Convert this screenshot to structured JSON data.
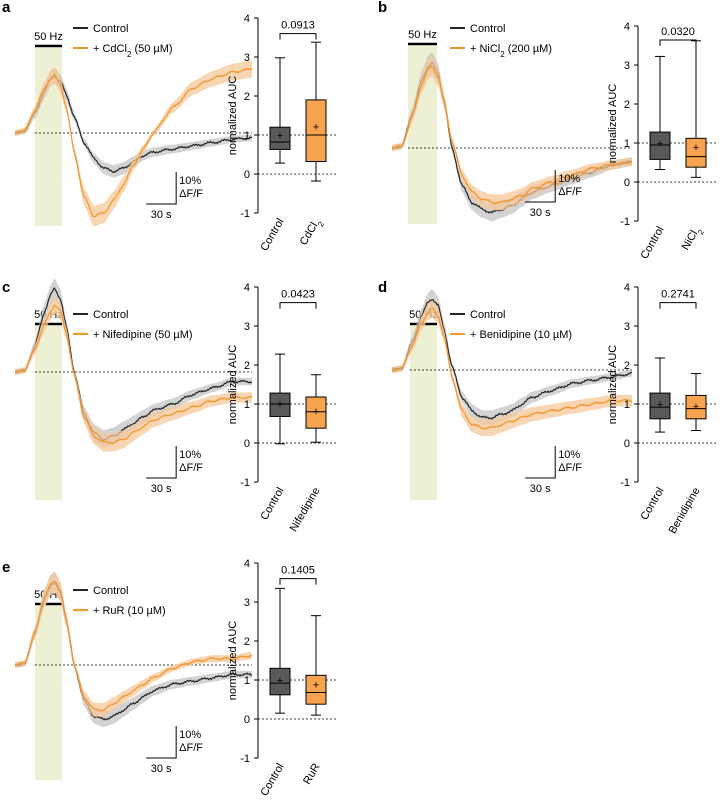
{
  "colors": {
    "control": "#262626",
    "treatment": "#f0962f",
    "control_band": "#c4c4c4",
    "treatment_band": "#f7c89a",
    "stim_shade": "#eef0d3",
    "box_control": "#595959",
    "box_treatment": "#f7a34f"
  },
  "chart_data": [
    {
      "panel": "a",
      "type": "line",
      "stim_label": "50 Hz",
      "legend": {
        "control": "Control",
        "treatment_prefix": "+ CdCl",
        "treatment_sub": "2",
        "treatment_suffix": " (50 µM)"
      },
      "scalebar": {
        "y_label": "10%",
        "y_unit": "ΔF/F",
        "x_label": "30 s"
      },
      "baseline": 0,
      "series": [
        {
          "name": "Control",
          "x": [
            0,
            5,
            10,
            15,
            18,
            20,
            23,
            26,
            30,
            35,
            40,
            45,
            50,
            55,
            60,
            65,
            70,
            80,
            90,
            100,
            110,
            120
          ],
          "y": [
            0,
            0.6,
            6,
            13,
            17,
            18,
            16,
            12,
            5,
            -3,
            -8,
            -11,
            -12,
            -11,
            -9,
            -7,
            -6,
            -5,
            -4,
            -3,
            -2,
            -1.5
          ]
        },
        {
          "name": "+ CdCl2 (50 µM)",
          "x": [
            0,
            5,
            10,
            15,
            18,
            20,
            23,
            26,
            30,
            35,
            40,
            45,
            50,
            55,
            60,
            65,
            70,
            80,
            90,
            100,
            110,
            120
          ],
          "y": [
            0,
            0.8,
            7,
            14,
            17,
            18,
            15,
            8,
            -6,
            -20,
            -26,
            -25,
            -21,
            -16,
            -10,
            -5,
            0,
            8,
            14,
            17,
            19,
            20
          ]
        }
      ],
      "box": {
        "ylabel": "normalized AUC",
        "ylim": [
          -1,
          4
        ],
        "yticks": [
          "4",
          "3",
          "2",
          "1",
          "0",
          "-1"
        ],
        "categories": [
          "Control",
          "CdCl"
        ],
        "category_sub": [
          "",
          "2"
        ],
        "p_value": "0.0913",
        "stats": [
          {
            "min": 0.28,
            "q1": 0.63,
            "median": 0.82,
            "q3": 1.2,
            "max": 2.98,
            "mean": 1.0
          },
          {
            "min": -0.18,
            "q1": 0.32,
            "median": 1.0,
            "q3": 1.9,
            "max": 3.38,
            "mean": 1.22
          }
        ]
      }
    },
    {
      "panel": "b",
      "type": "line",
      "stim_label": "50 Hz",
      "legend": {
        "control": "Control",
        "treatment_prefix": "+ NiCl",
        "treatment_sub": "2",
        "treatment_suffix": " (200 µM)"
      },
      "scalebar": {
        "y_label": "10%",
        "y_unit": "ΔF/F",
        "x_label": "30 s"
      },
      "baseline": 0,
      "series": [
        {
          "name": "Control",
          "x": [
            0,
            5,
            10,
            15,
            18,
            20,
            23,
            26,
            30,
            35,
            40,
            45,
            50,
            55,
            60,
            65,
            70,
            80,
            90,
            100,
            110,
            120
          ],
          "y": [
            0,
            0.5,
            10,
            20,
            24,
            25,
            22,
            14,
            0,
            -11,
            -16,
            -18,
            -19,
            -18,
            -17,
            -15,
            -13,
            -11,
            -9,
            -7,
            -5,
            -4
          ]
        },
        {
          "name": "+ NiCl2 (200 µM)",
          "x": [
            0,
            5,
            10,
            15,
            18,
            20,
            23,
            26,
            30,
            35,
            40,
            45,
            50,
            55,
            60,
            65,
            70,
            80,
            90,
            100,
            110,
            120
          ],
          "y": [
            0,
            0.5,
            9,
            19,
            23,
            24,
            21,
            14,
            2,
            -8,
            -13,
            -15,
            -16,
            -16,
            -15,
            -14,
            -12,
            -10,
            -8,
            -6,
            -5,
            -4
          ]
        }
      ],
      "box": {
        "ylabel": "normalized AUC",
        "ylim": [
          -1,
          4
        ],
        "yticks": [
          "4",
          "3",
          "2",
          "1",
          "0",
          "-1"
        ],
        "categories": [
          "Control",
          "NiCl"
        ],
        "category_sub": [
          "",
          "2"
        ],
        "p_value": "0.0320",
        "stats": [
          {
            "min": 0.32,
            "q1": 0.58,
            "median": 0.95,
            "q3": 1.28,
            "max": 3.22,
            "mean": 1.0
          },
          {
            "min": 0.12,
            "q1": 0.38,
            "median": 0.65,
            "q3": 1.12,
            "max": 3.62,
            "mean": 0.9
          }
        ]
      }
    },
    {
      "panel": "c",
      "type": "line",
      "stim_label": "50 Hz",
      "legend": {
        "control": "Control",
        "treatment_prefix": "+ Nifedipine (50 µM)",
        "treatment_sub": "",
        "treatment_suffix": ""
      },
      "scalebar": {
        "y_label": "10%",
        "y_unit": "ΔF/F",
        "x_label": "30 s"
      },
      "baseline": 0,
      "series": [
        {
          "name": "Control",
          "x": [
            0,
            5,
            10,
            15,
            18,
            20,
            23,
            26,
            30,
            35,
            40,
            45,
            50,
            55,
            60,
            65,
            70,
            80,
            90,
            100,
            110,
            120
          ],
          "y": [
            0,
            0.5,
            8,
            19,
            24,
            26,
            23,
            14,
            0,
            -13,
            -19,
            -21,
            -20,
            -18,
            -16,
            -14,
            -12,
            -10,
            -7,
            -5,
            -3,
            -3
          ]
        },
        {
          "name": "+ Nifedipine (50 µM)",
          "x": [
            0,
            5,
            10,
            15,
            18,
            20,
            23,
            26,
            30,
            35,
            40,
            45,
            50,
            55,
            60,
            65,
            70,
            80,
            90,
            100,
            110,
            120
          ],
          "y": [
            0,
            0.5,
            7,
            15,
            19,
            21,
            19,
            12,
            -1,
            -14,
            -20,
            -22,
            -22,
            -21,
            -19,
            -17,
            -15,
            -13,
            -11,
            -9,
            -8,
            -8
          ]
        }
      ],
      "box": {
        "ylabel": "normalized AUC",
        "ylim": [
          -1,
          4
        ],
        "yticks": [
          "4",
          "3",
          "2",
          "1",
          "0",
          "-1"
        ],
        "categories": [
          "Control",
          "Nifedipine"
        ],
        "category_sub": [
          "",
          ""
        ],
        "p_value": "0.0423",
        "stats": [
          {
            "min": -0.02,
            "q1": 0.68,
            "median": 1.0,
            "q3": 1.28,
            "max": 2.28,
            "mean": 1.0
          },
          {
            "min": 0.02,
            "q1": 0.38,
            "median": 0.8,
            "q3": 1.18,
            "max": 1.75,
            "mean": 0.82
          }
        ]
      }
    },
    {
      "panel": "d",
      "type": "line",
      "stim_label": "50 Hz",
      "legend": {
        "control": "Control",
        "treatment_prefix": "+ Benidipine (10 µM)",
        "treatment_sub": "",
        "treatment_suffix": ""
      },
      "scalebar": {
        "y_label": "10%",
        "y_unit": "ΔF/F",
        "x_label": "30 s"
      },
      "baseline": 0,
      "series": [
        {
          "name": "Control",
          "x": [
            0,
            5,
            10,
            15,
            18,
            20,
            23,
            26,
            30,
            35,
            40,
            45,
            50,
            55,
            60,
            65,
            70,
            80,
            90,
            100,
            110,
            120
          ],
          "y": [
            0,
            0.5,
            8,
            16,
            20,
            21,
            19,
            12,
            1,
            -8,
            -12,
            -14,
            -14,
            -13,
            -12,
            -10,
            -8,
            -6,
            -4,
            -3,
            -2,
            -1
          ]
        },
        {
          "name": "+ Benidipine (10 µM)",
          "x": [
            0,
            5,
            10,
            15,
            18,
            20,
            23,
            26,
            30,
            35,
            40,
            45,
            50,
            55,
            60,
            65,
            70,
            80,
            90,
            100,
            110,
            120
          ],
          "y": [
            0,
            0.5,
            7,
            14,
            17,
            18,
            16,
            10,
            -2,
            -12,
            -16,
            -17,
            -17,
            -16,
            -15,
            -14,
            -13,
            -12,
            -11,
            -10,
            -9,
            -9
          ]
        }
      ],
      "box": {
        "ylabel": "normalized AUC",
        "ylim": [
          -1,
          4
        ],
        "yticks": [
          "4",
          "3",
          "2",
          "1",
          "0",
          "-1"
        ],
        "categories": [
          "Control",
          "Benidipine"
        ],
        "category_sub": [
          "",
          ""
        ],
        "p_value": "0.2741",
        "stats": [
          {
            "min": 0.28,
            "q1": 0.62,
            "median": 0.92,
            "q3": 1.28,
            "max": 2.18,
            "mean": 1.0
          },
          {
            "min": 0.32,
            "q1": 0.62,
            "median": 0.88,
            "q3": 1.22,
            "max": 1.78,
            "mean": 0.95
          }
        ]
      }
    },
    {
      "panel": "e",
      "type": "line",
      "stim_label": "50 Hz",
      "legend": {
        "control": "Control",
        "treatment_prefix": "+ RuR (10 µM)",
        "treatment_sub": "",
        "treatment_suffix": ""
      },
      "scalebar": {
        "y_label": "10%",
        "y_unit": "ΔF/F",
        "x_label": "30 s"
      },
      "baseline": 0,
      "series": [
        {
          "name": "Control",
          "x": [
            0,
            5,
            10,
            15,
            18,
            20,
            23,
            26,
            30,
            35,
            40,
            45,
            50,
            55,
            60,
            65,
            70,
            80,
            90,
            100,
            110,
            120
          ],
          "y": [
            0,
            0.5,
            10,
            21,
            25,
            26,
            23,
            14,
            0,
            -11,
            -16,
            -17,
            -16,
            -14,
            -12,
            -10,
            -8,
            -6,
            -5,
            -4,
            -3,
            -3
          ]
        },
        {
          "name": "+ RuR (10 µM)",
          "x": [
            0,
            5,
            10,
            15,
            18,
            20,
            23,
            26,
            30,
            35,
            40,
            45,
            50,
            55,
            60,
            65,
            70,
            80,
            90,
            100,
            110,
            120
          ],
          "y": [
            0,
            0.5,
            10,
            21,
            25,
            26,
            23,
            14,
            0,
            -10,
            -14,
            -14,
            -12,
            -10,
            -8,
            -6,
            -4,
            -1,
            1,
            2,
            2,
            3
          ]
        }
      ],
      "box": {
        "ylabel": "normalized AUC",
        "ylim": [
          -1,
          4
        ],
        "yticks": [
          "4",
          "3",
          "2",
          "1",
          "0",
          "-1"
        ],
        "categories": [
          "Control",
          "RuR"
        ],
        "category_sub": [
          "",
          ""
        ],
        "p_value": "0.1405",
        "stats": [
          {
            "min": 0.15,
            "q1": 0.62,
            "median": 0.92,
            "q3": 1.3,
            "max": 3.35,
            "mean": 1.0
          },
          {
            "min": 0.1,
            "q1": 0.38,
            "median": 0.68,
            "q3": 1.12,
            "max": 2.65,
            "mean": 0.88
          }
        ]
      }
    }
  ]
}
